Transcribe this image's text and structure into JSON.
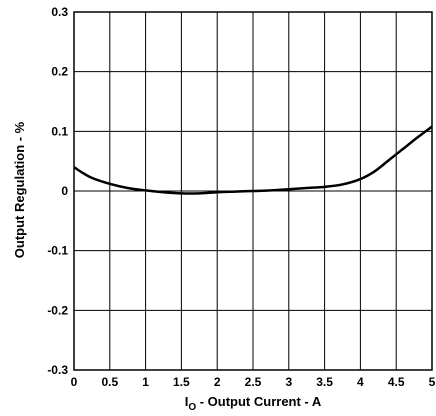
{
  "chart_data": {
    "type": "line",
    "xlabel": {
      "main": "I",
      "sub": "O",
      "rest": " - Output Current - A"
    },
    "ylabel": "Output Regulation - %",
    "xlim": [
      0,
      5
    ],
    "ylim": [
      -0.3,
      0.3
    ],
    "x_ticks": [
      "0",
      "0.5",
      "1",
      "1.5",
      "2",
      "2.5",
      "3",
      "3.5",
      "4",
      "4.5",
      "5"
    ],
    "y_ticks": [
      "0.3",
      "0.2",
      "0.1",
      "0",
      "-0.1",
      "-0.2",
      "-0.3"
    ],
    "grid": true,
    "series": [
      {
        "color": "#000000",
        "x": [
          0,
          0.1,
          0.25,
          0.5,
          0.75,
          1.0,
          1.25,
          1.5,
          1.75,
          2.0,
          2.25,
          2.5,
          2.75,
          3.0,
          3.25,
          3.5,
          3.75,
          4.0,
          4.2,
          4.4,
          4.6,
          4.8,
          5.0
        ],
        "y": [
          0.04,
          0.032,
          0.022,
          0.012,
          0.005,
          0.001,
          -0.002,
          -0.004,
          -0.004,
          -0.002,
          -0.001,
          0.0,
          0.001,
          0.003,
          0.005,
          0.007,
          0.011,
          0.02,
          0.033,
          0.052,
          0.071,
          0.09,
          0.108
        ]
      }
    ]
  }
}
